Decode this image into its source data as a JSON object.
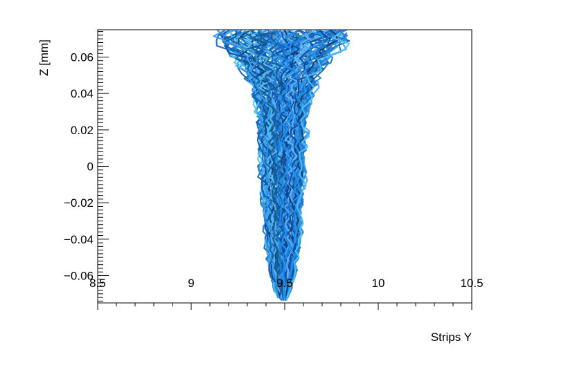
{
  "chart_data": {
    "type": "line",
    "title": "",
    "xlabel": "Strips Y",
    "ylabel": "Z [mm]",
    "xlim": [
      8.5,
      10.5
    ],
    "ylim": [
      -0.075,
      0.075
    ],
    "x_ticks": [
      8.5,
      9,
      9.5,
      10,
      10.5
    ],
    "x_tick_labels": [
      "8.5",
      "9",
      "9.5",
      "10",
      "10.5"
    ],
    "y_ticks": [
      -0.06,
      -0.04,
      -0.02,
      0,
      0.02,
      0.04,
      0.06
    ],
    "y_tick_labels": [
      "−0.06",
      "−0.04",
      "−0.02",
      "0",
      "0.02",
      "0.04",
      "0.06"
    ],
    "grid": false,
    "legend": "none",
    "series_palette": [
      "#0b3a66",
      "#1565c0",
      "#1e88e5",
      "#42a5f5",
      "#64b5f6",
      "#0d47a1",
      "#1976d2",
      "#2196f3",
      "#4fc3f7",
      "#0a5fa8",
      "#155a8a",
      "#3d8fd6"
    ],
    "track_bundle": {
      "count": 120,
      "y": [
        -0.074,
        -0.068,
        -0.06,
        -0.05,
        -0.04,
        -0.03,
        -0.02,
        -0.01,
        0,
        0.01,
        0.02,
        0.03,
        0.04,
        0.05,
        0.06,
        0.07,
        0.075
      ],
      "center_x": [
        9.49,
        9.49,
        9.49,
        9.49,
        9.49,
        9.49,
        9.49,
        9.49,
        9.49,
        9.49,
        9.49,
        9.49,
        9.49,
        9.49,
        9.49,
        9.49,
        9.5
      ],
      "half_width": [
        0.02,
        0.045,
        0.065,
        0.085,
        0.095,
        0.1,
        0.11,
        0.115,
        0.12,
        0.125,
        0.13,
        0.14,
        0.16,
        0.2,
        0.27,
        0.35,
        0.37
      ]
    }
  }
}
